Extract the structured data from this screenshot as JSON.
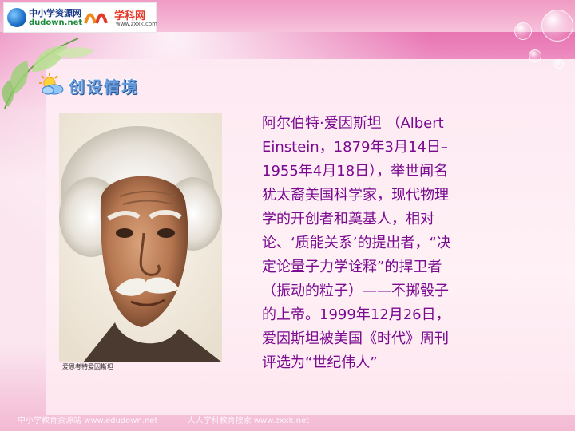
{
  "header": {
    "logo_left_cn": "中小学资源网",
    "logo_left_en": "dudown.net",
    "logo_right_cn": "学科网",
    "logo_right_en": "www.zxxk.com"
  },
  "section": {
    "title": "创设情境"
  },
  "photo": {
    "caption": "爱恩考特爱因斯坦"
  },
  "body": {
    "lines": [
      "阿尔伯特·爱因斯坦 （Albert",
      "Einstein，1879年3月14日–",
      "1955年4月18日），举世闻名",
      "犹太裔美国科学家，现代物理",
      "学的开创者和奠基人，相对",
      "论、‘质能关系’的提出者，“决",
      "定论量子力学诠释”的捍卫者",
      "（振动的粒子）——不掷骰子",
      "的上帝。1999年12月26日，",
      "爱因斯坦被美国《时代》周刊",
      "评选为“世纪伟人”"
    ]
  },
  "footer": {
    "left": "中小学教育资源站 www.edudown.net",
    "right": "人人学科教育搜索 www.zxxk.net"
  },
  "colors": {
    "body_text": "#7a0a8f",
    "title": "#6a9fe0",
    "pink_bg": "#fbe6ef"
  }
}
